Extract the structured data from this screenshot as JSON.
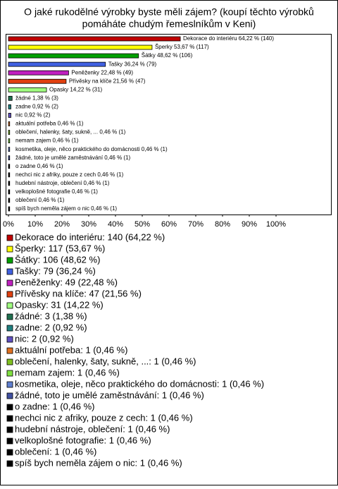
{
  "chart_data": {
    "type": "bar",
    "orientation": "horizontal",
    "title": [
      "O jaké rukodělné výrobky byste měli zájem? (koupí těchto výrobků",
      "pomáháte chudým řemeslníkům v Keni)"
    ],
    "values": [
      64.22,
      53.67,
      48.62,
      36.24,
      22.48,
      21.56,
      14.22,
      1.38,
      0.92,
      0.92,
      0.46,
      0.46,
      0.46,
      0.46,
      0.46,
      0.46,
      0.46,
      0.46,
      0.46,
      0.46,
      0.46
    ],
    "value_labels": [
      "Dekorace do interiéru 64,22 % (140)",
      "Šperky 53,67 % (117)",
      "Šátky 48,62 % (106)",
      "Tašky 36,24 % (79)",
      "Peněženky 22,48 % (49)",
      "Přívěsky na klíče 21,56 % (47)",
      "Opasky 14,22 % (31)",
      "žádné 1,38 % (3)",
      "zadne 0,92 % (2)",
      "nic 0,92 % (2)",
      "aktuální potřeba 0,46 % (1)",
      "oblečení, halenky, šaty, sukně, ... 0,46 % (1)",
      "nemam zajem 0,46 % (1)",
      "kosmetika, oleje, něco praktického do domácnosti 0,46 % (1)",
      "žádné, toto je umělé zaměstnávání 0,46 % (1)",
      "o zadne 0,46 % (1)",
      "nechci nic z afriky, pouze z cech 0,46 % (1)",
      "hudební nástroje, oblečení 0,46 % (1)",
      "velkoplošné fotografie 0,46 % (1)",
      "oblečení 0,46 % (1)",
      "spíš bych neměla zájem o nic 0,46 % (1)"
    ],
    "legend_labels": [
      "Dekorace do interiéru: 140 (64,22 %)",
      "Šperky: 117 (53,67 %)",
      "Šátky: 106 (48,62 %)",
      "Tašky: 79 (36,24 %)",
      "Peněženky: 49 (22,48 %)",
      "Přívěsky na klíče: 47 (21,56 %)",
      "Opasky: 31 (14,22 %)",
      "žádné: 3 (1,38 %)",
      "zadne: 2 (0,92 %)",
      "nic: 2 (0,92 %)",
      "aktuální potřeba: 1 (0,46 %)",
      "oblečení, halenky, šaty, sukně, ...: 1 (0,46 %)",
      "nemam zajem: 1 (0,46 %)",
      "kosmetika, oleje, něco praktického do domácnosti: 1 (0,46 %)",
      "žádné, toto je umělé zaměstnávání: 1 (0,46 %)",
      "o zadne: 1 (0,46 %)",
      "nechci nic z afriky, pouze z cech: 1 (0,46 %)",
      "hudební nástroje, oblečení: 1 (0,46 %)",
      "velkoplošné fotografie: 1 (0,46 %)",
      "oblečení: 1 (0,46 %)",
      "spíš bych neměla zájem o nic: 1 (0,46 %)"
    ],
    "colors": [
      "#c00000",
      "#ffff00",
      "#00a000",
      "#4060e0",
      "#c020c0",
      "#e04010",
      "#a0ff80",
      "#207050",
      "#208080",
      "#6050c0",
      "#e07020",
      "#80c020",
      "#80e040",
      "#6080d0",
      "#4050a0",
      "#000000",
      "#000000",
      "#000000",
      "#000000",
      "#000000",
      "#000000"
    ],
    "xlim": [
      0,
      120
    ],
    "xticks": [
      {
        "value": 0,
        "label": "0%"
      },
      {
        "value": 10,
        "label": "10%"
      },
      {
        "value": 20,
        "label": "20%"
      },
      {
        "value": 30,
        "label": "30%"
      },
      {
        "value": 40,
        "label": "40%"
      },
      {
        "value": 50,
        "label": "50%"
      },
      {
        "value": 60,
        "label": "60%"
      },
      {
        "value": 70,
        "label": "70%"
      },
      {
        "value": 80,
        "label": "80%"
      },
      {
        "value": 90,
        "label": "90%"
      },
      {
        "value": 100,
        "label": "100%"
      }
    ],
    "grid": false
  }
}
